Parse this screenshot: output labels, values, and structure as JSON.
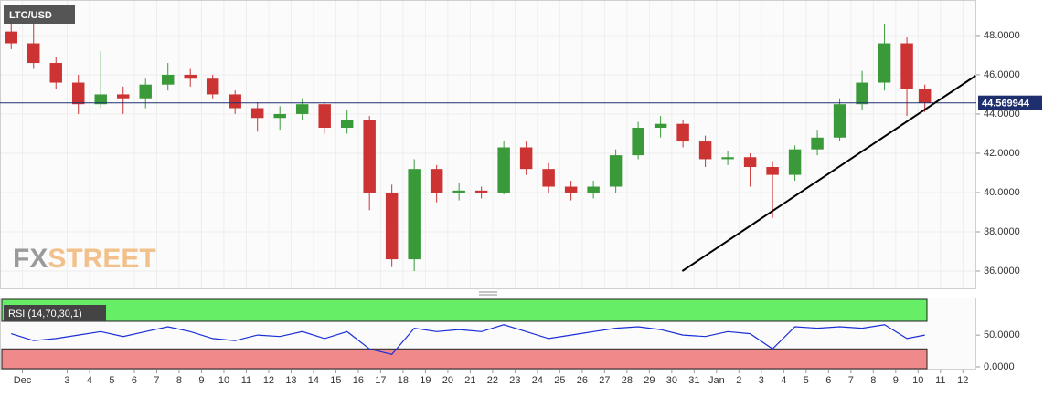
{
  "chart_data": [
    {
      "type": "candlestick",
      "title": "LTC/USD",
      "x": [
        0.5,
        1.5,
        2.5,
        3.5,
        4.5,
        5.5,
        6.5,
        7.5,
        8.5,
        9.5,
        10.5,
        11.5,
        12.5,
        13.5,
        14.5,
        15.5,
        16.5,
        17.5,
        18.5,
        19.5,
        20.5,
        21.5,
        22.5,
        23.5,
        24.5,
        25.5,
        26.5,
        27.5,
        28.5,
        29.5,
        30.5,
        31.5,
        32.5,
        33.5,
        34.5,
        35.5,
        36.5,
        37.5,
        38.5,
        39.5,
        40.5,
        41.3
      ],
      "open": [
        48.2,
        47.6,
        46.6,
        45.6,
        44.5,
        45.0,
        44.8,
        45.5,
        46.0,
        45.8,
        45.0,
        44.3,
        43.8,
        44.0,
        44.5,
        43.3,
        43.7,
        40.0,
        36.6,
        41.2,
        40.0,
        40.1,
        40.0,
        42.3,
        41.2,
        40.3,
        40.0,
        40.3,
        41.9,
        43.3,
        43.5,
        42.6,
        41.7,
        41.8,
        41.3,
        40.9,
        42.2,
        42.8,
        44.5,
        45.6,
        47.6,
        45.3
      ],
      "high": [
        48.9,
        48.6,
        46.9,
        46.0,
        47.2,
        45.4,
        45.8,
        46.6,
        46.3,
        46.0,
        45.2,
        44.6,
        44.4,
        44.8,
        44.6,
        44.2,
        43.9,
        40.4,
        41.7,
        41.4,
        40.5,
        40.3,
        42.6,
        42.6,
        41.5,
        40.6,
        40.6,
        42.2,
        43.6,
        43.9,
        43.7,
        42.9,
        42.1,
        42.0,
        41.6,
        42.4,
        43.2,
        44.8,
        46.2,
        48.6,
        47.9,
        45.5
      ],
      "low": [
        47.3,
        46.3,
        45.3,
        44.0,
        44.3,
        44.0,
        44.3,
        45.2,
        45.4,
        44.8,
        44.0,
        43.1,
        43.2,
        43.7,
        43.0,
        43.0,
        39.1,
        36.2,
        36.0,
        39.5,
        39.6,
        39.7,
        39.9,
        40.9,
        40.0,
        39.6,
        39.7,
        40.0,
        41.7,
        42.8,
        42.3,
        41.3,
        41.4,
        40.3,
        38.7,
        40.6,
        41.9,
        42.6,
        44.2,
        45.2,
        43.9,
        44.1
      ],
      "close": [
        47.6,
        46.6,
        45.6,
        44.5,
        45.0,
        44.8,
        45.5,
        46.0,
        45.8,
        45.0,
        44.3,
        43.8,
        44.0,
        44.5,
        43.3,
        43.7,
        40.0,
        36.6,
        41.2,
        40.0,
        40.1,
        40.0,
        42.3,
        41.2,
        40.3,
        40.0,
        40.3,
        41.9,
        43.3,
        43.5,
        42.6,
        41.7,
        41.8,
        41.3,
        40.9,
        42.2,
        42.8,
        44.5,
        45.6,
        47.6,
        45.3,
        44.57
      ],
      "up_color": "#3a9a3a",
      "down_color": "#cc3333",
      "last_price": 44.569944,
      "last_price_color": "#1f2f6e",
      "trendline": {
        "x": [
          30.47,
          43.57
        ],
        "y": [
          36.0,
          45.95
        ]
      },
      "watermark": [
        "FX",
        "STREET"
      ],
      "xlim": [
        0,
        43.6
      ],
      "ylim": [
        35.07,
        49.81
      ],
      "yticks": [
        {
          "value": 36,
          "label": "36.0000"
        },
        {
          "value": 38,
          "label": "38.0000"
        },
        {
          "value": 40,
          "label": "40.0000"
        },
        {
          "value": 42,
          "label": "42.0000"
        },
        {
          "value": 44,
          "label": "44.0000"
        },
        {
          "value": 46,
          "label": "46.0000"
        },
        {
          "value": 48,
          "label": "48.0000"
        }
      ],
      "grid": true
    },
    {
      "type": "line",
      "title": "RSI (14,70,30,1)",
      "x": [
        0.5,
        1.5,
        2.5,
        3.5,
        4.5,
        5.5,
        6.5,
        7.5,
        8.5,
        9.5,
        10.5,
        11.5,
        12.5,
        13.5,
        14.5,
        15.5,
        16.5,
        17.5,
        18.5,
        19.5,
        20.5,
        21.5,
        22.5,
        23.5,
        24.5,
        25.5,
        26.5,
        27.5,
        28.5,
        29.5,
        30.5,
        31.5,
        32.5,
        33.5,
        34.5,
        35.5,
        36.5,
        37.5,
        38.5,
        39.5,
        40.5,
        41.3
      ],
      "values": [
        52,
        42,
        45,
        50,
        55,
        48,
        55,
        62,
        55,
        45,
        42,
        50,
        48,
        55,
        45,
        55,
        30,
        22,
        60,
        55,
        58,
        55,
        65,
        55,
        45,
        50,
        55,
        60,
        62,
        58,
        50,
        48,
        55,
        52,
        30,
        62,
        60,
        62,
        60,
        65,
        45,
        50
      ],
      "color": "#1a2ed6",
      "overbought": 70,
      "oversold": 30,
      "overbought_color": "#66ee66",
      "oversold_color": "#f08a8a",
      "xlim": [
        0,
        43.6
      ],
      "ylim": [
        0,
        103
      ],
      "yticks": [
        {
          "value": 0,
          "label": "0.0000"
        },
        {
          "value": 50,
          "label": "50.0000"
        }
      ],
      "xticks": [
        {
          "value": 1,
          "label": "Dec"
        },
        3,
        4,
        5,
        6,
        7,
        8,
        9,
        10,
        11,
        12,
        13,
        14,
        15,
        16,
        17,
        18,
        19,
        20,
        21,
        22,
        23,
        24,
        25,
        26,
        27,
        28,
        29,
        30,
        31,
        {
          "value": 32,
          "label": "Jan"
        },
        {
          "value": 33,
          "label": "2"
        },
        {
          "value": 34,
          "label": "3"
        },
        {
          "value": 35,
          "label": "4"
        },
        {
          "value": 36,
          "label": "5"
        },
        {
          "value": 37,
          "label": "6"
        },
        {
          "value": 38,
          "label": "7"
        },
        {
          "value": 39,
          "label": "8"
        },
        {
          "value": 40,
          "label": "9"
        },
        {
          "value": 41,
          "label": "10"
        },
        {
          "value": 42,
          "label": "11"
        },
        {
          "value": 43,
          "label": "12"
        }
      ]
    }
  ]
}
